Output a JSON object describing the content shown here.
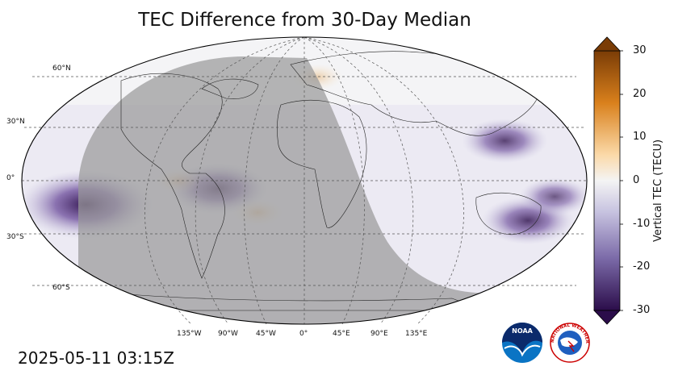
{
  "title": "TEC Difference from 30-Day Median",
  "timestamp": "2025-05-11 03:15Z",
  "colorbar": {
    "label": "Vertical TEC (TECU)",
    "ticks": [
      "30",
      "20",
      "10",
      "0",
      "-10",
      "-20",
      "-30"
    ],
    "range": [
      -30,
      30
    ],
    "colors": {
      "max": "#7a3c06",
      "high": "#e08a1e",
      "light": "#fde7c6",
      "zero": "#f4f4f4",
      "low": "#c7c3e0",
      "mid": "#7b6aa8",
      "min": "#2b0d4a"
    }
  },
  "map": {
    "projection": "Robinson",
    "lat_labels": [
      "60°N",
      "30°N",
      "0°",
      "30°S",
      "60°S"
    ],
    "lon_labels": [
      "135°W",
      "90°W",
      "45°W",
      "0°",
      "45°E",
      "90°E",
      "135°E"
    ],
    "night_shade_color": "#9a9a9a",
    "anomalies": [
      {
        "lon": -140,
        "lat": -15,
        "value": -30
      },
      {
        "lon": 130,
        "lat": 25,
        "value": -16
      },
      {
        "lon": 145,
        "lat": -25,
        "value": -18
      },
      {
        "lon": -55,
        "lat": -5,
        "value": -20
      },
      {
        "lon": 160,
        "lat": -10,
        "value": -12
      },
      {
        "lon": 10,
        "lat": 65,
        "value": 6
      },
      {
        "lon": -80,
        "lat": 0,
        "value": 5
      },
      {
        "lon": -30,
        "lat": -20,
        "value": 6
      }
    ]
  },
  "logos": {
    "noaa": "NOAA",
    "nws": "NATIONAL WEATHER SERVICE"
  }
}
